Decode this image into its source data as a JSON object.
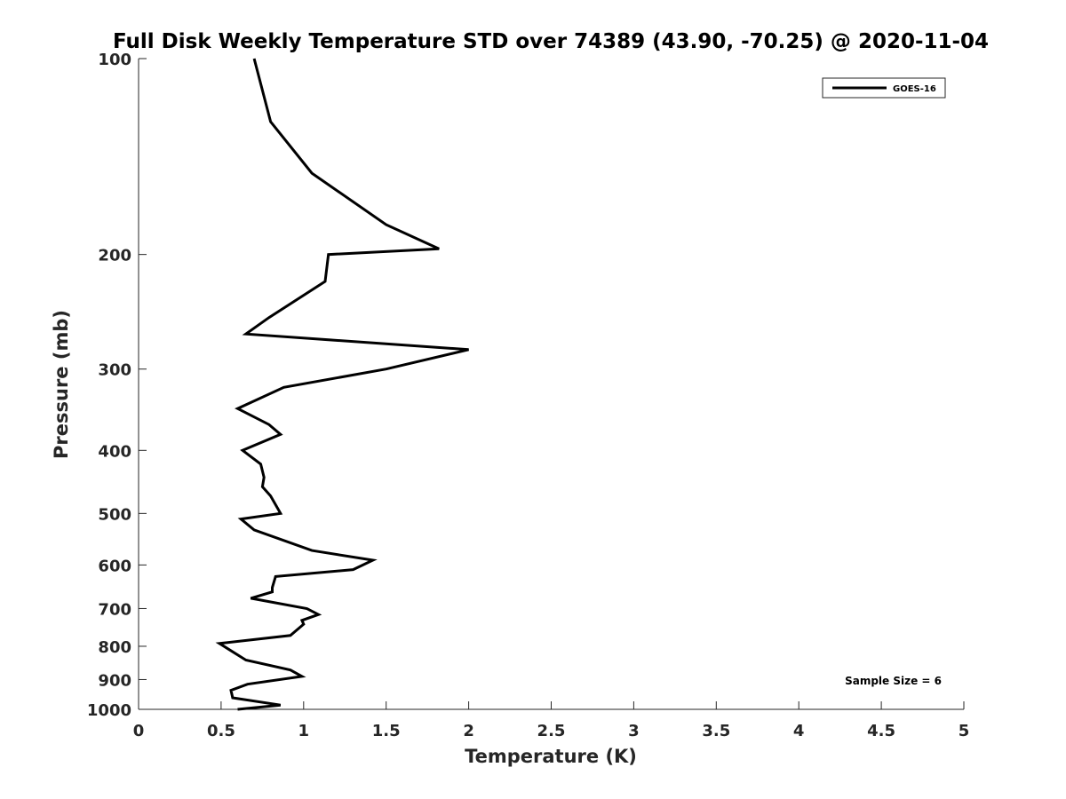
{
  "chart_data": {
    "type": "line",
    "title": "Full Disk Weekly Temperature STD over 74389 (43.90, -70.25) @ 2020-11-04",
    "xlabel": "Temperature (K)",
    "ylabel": "Pressure (mb)",
    "xlim": [
      0,
      5
    ],
    "ylim": [
      1000,
      100
    ],
    "y_scale": "log",
    "x_ticks": [
      "0",
      "0.5",
      "1",
      "1.5",
      "2",
      "2.5",
      "3",
      "3.5",
      "4",
      "4.5",
      "5"
    ],
    "y_ticks": [
      "100",
      "200",
      "300",
      "400",
      "500",
      "600",
      "700",
      "800",
      "900",
      "1000"
    ],
    "legend_position": "top-right",
    "grid": false,
    "annotation": "Sample Size = 6",
    "series": [
      {
        "name": "GOES-16",
        "color": "#000000",
        "x": [
          0.7,
          0.8,
          1.05,
          1.5,
          1.82,
          1.15,
          1.13,
          0.79,
          0.65,
          2.0,
          1.5,
          0.88,
          0.6,
          0.79,
          0.86,
          0.63,
          0.74,
          0.76,
          0.75,
          0.8,
          0.86,
          0.62,
          0.7,
          1.05,
          1.42,
          1.3,
          0.83,
          0.81,
          0.81,
          0.68,
          1.02,
          1.09,
          0.99,
          1.0,
          0.92,
          0.49,
          0.65,
          0.92,
          0.99,
          0.66,
          0.56,
          0.57,
          0.86,
          0.6
        ],
        "y": [
          100,
          125,
          150,
          180,
          196,
          200,
          220,
          250,
          265,
          280,
          300,
          320,
          345,
          365,
          378,
          400,
          420,
          440,
          455,
          470,
          500,
          510,
          530,
          570,
          590,
          610,
          625,
          650,
          660,
          675,
          700,
          715,
          730,
          740,
          770,
          792,
          840,
          870,
          890,
          915,
          935,
          960,
          985,
          1000
        ]
      }
    ]
  }
}
